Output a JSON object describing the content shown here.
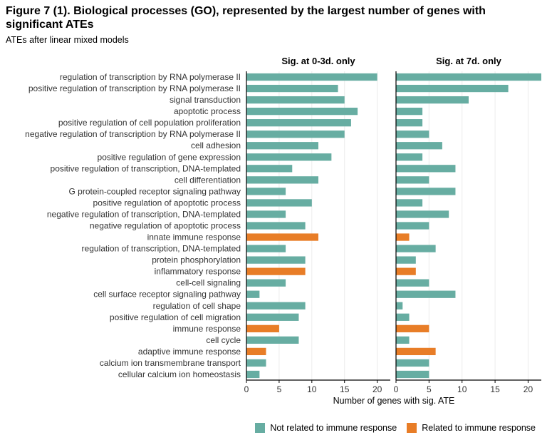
{
  "title": "Figure 7 (1). Biological processes (GO), represented by the largest number of genes with significant ATEs",
  "subtitle": "ATEs after linear mixed models",
  "colors": {
    "not_immune": "#67ada2",
    "immune": "#e87d27",
    "grid": "#ececec",
    "axis": "#000000"
  },
  "chart_data": {
    "type": "bar",
    "orientation": "horizontal",
    "xlabel": "Number of genes with sig. ATE",
    "categories": [
      "regulation of transcription by RNA polymerase II",
      "positive regulation of transcription by RNA polymerase II",
      "signal transduction",
      "apoptotic process",
      "positive regulation of cell population proliferation",
      "negative regulation of transcription by RNA polymerase II",
      "cell adhesion",
      "positive regulation of gene expression",
      "positive regulation of transcription, DNA-templated",
      "cell differentiation",
      "G protein-coupled receptor signaling pathway",
      "positive regulation of apoptotic process",
      "negative regulation of transcription, DNA-templated",
      "negative regulation of apoptotic process",
      "innate immune response",
      "regulation of transcription, DNA-templated",
      "protein phosphorylation",
      "inflammatory response",
      "cell-cell signaling",
      "cell surface receptor signaling pathway",
      "regulation of cell shape",
      "positive regulation of cell migration",
      "immune response",
      "cell cycle",
      "adaptive immune response",
      "calcium ion transmembrane transport",
      "cellular calcium ion homeostasis"
    ],
    "immune_related": [
      false,
      false,
      false,
      false,
      false,
      false,
      false,
      false,
      false,
      false,
      false,
      false,
      false,
      false,
      true,
      false,
      false,
      true,
      false,
      false,
      false,
      false,
      true,
      false,
      true,
      false,
      false
    ],
    "panels": [
      {
        "title": "Sig. at 0-3d. only",
        "values": [
          20,
          14,
          15,
          17,
          16,
          15,
          11,
          13,
          7,
          11,
          6,
          10,
          6,
          9,
          11,
          6,
          9,
          9,
          6,
          2,
          9,
          8,
          5,
          8,
          3,
          3,
          2
        ],
        "xlim": [
          0,
          22
        ],
        "xticks": [
          0,
          5,
          10,
          15,
          20
        ]
      },
      {
        "title": "Sig. at 7d. only",
        "values": [
          22,
          17,
          11,
          4,
          4,
          5,
          7,
          4,
          9,
          5,
          9,
          4,
          8,
          5,
          2,
          6,
          3,
          3,
          5,
          9,
          1,
          2,
          5,
          2,
          6,
          5,
          5
        ],
        "xlim": [
          0,
          22
        ],
        "xticks": [
          0,
          5,
          10,
          15,
          20
        ]
      }
    ],
    "legend": {
      "position": "bottom-right",
      "items": [
        {
          "label": "Not related to immune response",
          "color": "#67ada2"
        },
        {
          "label": "Related to immune response",
          "color": "#e87d27"
        }
      ]
    }
  }
}
